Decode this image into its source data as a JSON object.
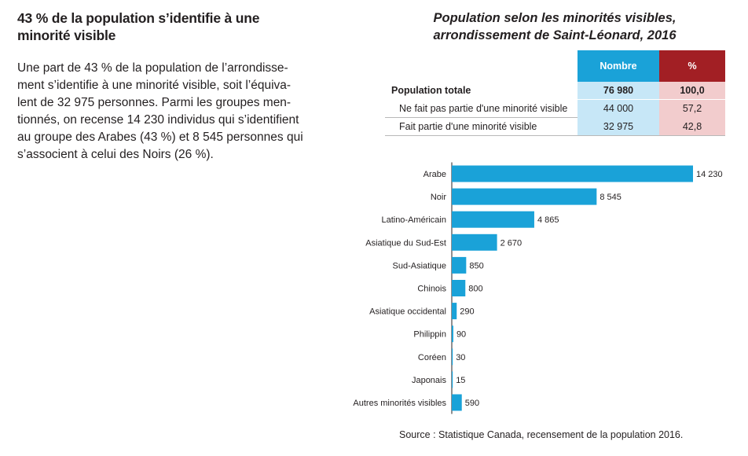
{
  "left_text": {
    "heading": "43 % de la population s’identifie à une minorité visible",
    "lines": [
      "Une part de 43 % de la population de l’arrondisse-",
      "ment s’identifie à une minorité visible, soit l’équiva-",
      "lent de 32 975 personnes. Parmi les groupes men-",
      "tionnés, on recense 14 230 individus qui s’identifient",
      "au groupe des Arabes (43 %) et 8 545 personnes qui",
      "s’associent à celui des Noirs (26 %)."
    ]
  },
  "chart_title": {
    "line1": "Population selon les minorités visibles,",
    "line2": "arrondissement de Saint-Léonard, 2016"
  },
  "summary_table": {
    "headers": {
      "nombre": "Nombre",
      "pct": "%"
    },
    "rows": [
      {
        "label": "Population totale",
        "nombre": "76 980",
        "pct": "100,0"
      },
      {
        "label": "Ne fait pas partie d'une minorité visible",
        "nombre": "44 000",
        "pct": "57,2"
      },
      {
        "label": "Fait partie d'une minorité visible",
        "nombre": "32 975",
        "pct": "42,8"
      }
    ]
  },
  "chart_data": {
    "type": "bar",
    "orientation": "horizontal",
    "categories": [
      "Arabe",
      "Noir",
      "Latino-Américain",
      "Asiatique du Sud-Est",
      "Sud-Asiatique",
      "Chinois",
      "Asiatique occidental",
      "Philippin",
      "Coréen",
      "Japonais",
      "Autres minorités visibles"
    ],
    "values": [
      14230,
      8545,
      4865,
      2670,
      850,
      800,
      290,
      90,
      30,
      15,
      590
    ],
    "value_labels": [
      "14 230",
      "8 545",
      "4 865",
      "2 670",
      "850",
      "800",
      "290",
      "90",
      "30",
      "15",
      "590"
    ],
    "bar_color": "#1aa2d8",
    "grid": false
  },
  "source": "Source : Statistique Canada, recensement de la population 2016."
}
